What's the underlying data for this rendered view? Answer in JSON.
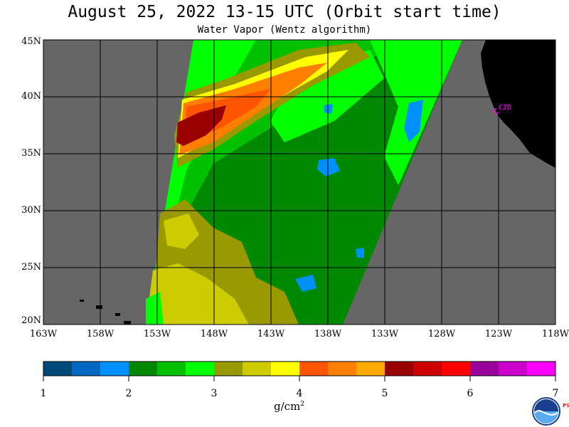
{
  "title": "August 25, 2022  13-15 UTC  (Orbit start time)",
  "subtitle": "Water Vapor (Wentz algorithm)",
  "map": {
    "lon_range": [
      -163,
      -118
    ],
    "lat_range": [
      20,
      45
    ],
    "y_ticks": [
      "45N",
      "40N",
      "35N",
      "30N",
      "25N",
      "20N"
    ],
    "x_ticks": [
      "163W",
      "158W",
      "153W",
      "148W",
      "143W",
      "138W",
      "133W",
      "128W",
      "123W",
      "118W"
    ],
    "no_data_color": "#666666",
    "land_color": "#000000",
    "station": {
      "label": "CZD",
      "lon": -123.0,
      "lat": 38.6,
      "color": "#ff00ff"
    }
  },
  "colorbar": {
    "colors": [
      "#004a7a",
      "#0068c0",
      "#0090ff",
      "#008800",
      "#00c000",
      "#00ff00",
      "#999900",
      "#cccc00",
      "#ffff00",
      "#ff5500",
      "#ff7f00",
      "#ffaa00",
      "#990000",
      "#cc0000",
      "#ff0000",
      "#990099",
      "#cc00cc",
      "#ff00ff"
    ],
    "labels": [
      "1",
      "2",
      "3",
      "4",
      "5",
      "6",
      "7"
    ],
    "units": "g/cm",
    "units_sup": "2"
  },
  "logo": {
    "text": "NOAA",
    "psl": "PSL"
  }
}
